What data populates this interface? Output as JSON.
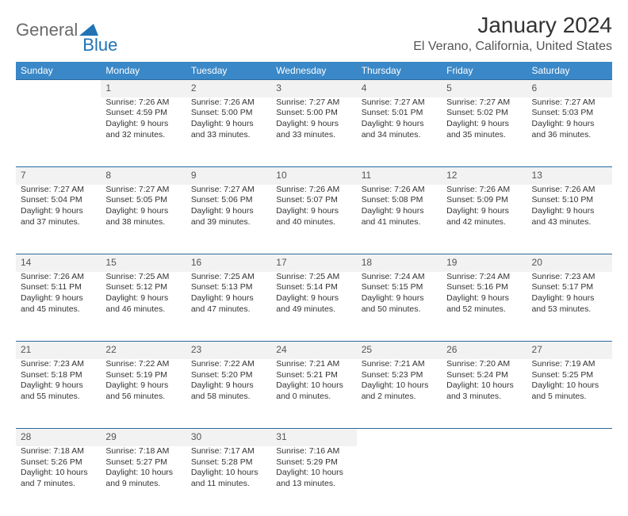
{
  "brand": {
    "part1": "General",
    "part2": "Blue",
    "color_gray": "#6a6a6a",
    "color_blue": "#2173b5"
  },
  "title": "January 2024",
  "location": "El Verano, California, United States",
  "header_bg": "#3a88c7",
  "header_text_color": "#ffffff",
  "daynum_bg": "#f2f2f2",
  "border_color": "#2a6aa0",
  "weekdays": [
    "Sunday",
    "Monday",
    "Tuesday",
    "Wednesday",
    "Thursday",
    "Friday",
    "Saturday"
  ],
  "weeks": [
    {
      "nums": [
        "",
        "1",
        "2",
        "3",
        "4",
        "5",
        "6"
      ],
      "cells": [
        null,
        {
          "sr": "Sunrise: 7:26 AM",
          "ss": "Sunset: 4:59 PM",
          "d1": "Daylight: 9 hours",
          "d2": "and 32 minutes."
        },
        {
          "sr": "Sunrise: 7:26 AM",
          "ss": "Sunset: 5:00 PM",
          "d1": "Daylight: 9 hours",
          "d2": "and 33 minutes."
        },
        {
          "sr": "Sunrise: 7:27 AM",
          "ss": "Sunset: 5:00 PM",
          "d1": "Daylight: 9 hours",
          "d2": "and 33 minutes."
        },
        {
          "sr": "Sunrise: 7:27 AM",
          "ss": "Sunset: 5:01 PM",
          "d1": "Daylight: 9 hours",
          "d2": "and 34 minutes."
        },
        {
          "sr": "Sunrise: 7:27 AM",
          "ss": "Sunset: 5:02 PM",
          "d1": "Daylight: 9 hours",
          "d2": "and 35 minutes."
        },
        {
          "sr": "Sunrise: 7:27 AM",
          "ss": "Sunset: 5:03 PM",
          "d1": "Daylight: 9 hours",
          "d2": "and 36 minutes."
        }
      ]
    },
    {
      "nums": [
        "7",
        "8",
        "9",
        "10",
        "11",
        "12",
        "13"
      ],
      "cells": [
        {
          "sr": "Sunrise: 7:27 AM",
          "ss": "Sunset: 5:04 PM",
          "d1": "Daylight: 9 hours",
          "d2": "and 37 minutes."
        },
        {
          "sr": "Sunrise: 7:27 AM",
          "ss": "Sunset: 5:05 PM",
          "d1": "Daylight: 9 hours",
          "d2": "and 38 minutes."
        },
        {
          "sr": "Sunrise: 7:27 AM",
          "ss": "Sunset: 5:06 PM",
          "d1": "Daylight: 9 hours",
          "d2": "and 39 minutes."
        },
        {
          "sr": "Sunrise: 7:26 AM",
          "ss": "Sunset: 5:07 PM",
          "d1": "Daylight: 9 hours",
          "d2": "and 40 minutes."
        },
        {
          "sr": "Sunrise: 7:26 AM",
          "ss": "Sunset: 5:08 PM",
          "d1": "Daylight: 9 hours",
          "d2": "and 41 minutes."
        },
        {
          "sr": "Sunrise: 7:26 AM",
          "ss": "Sunset: 5:09 PM",
          "d1": "Daylight: 9 hours",
          "d2": "and 42 minutes."
        },
        {
          "sr": "Sunrise: 7:26 AM",
          "ss": "Sunset: 5:10 PM",
          "d1": "Daylight: 9 hours",
          "d2": "and 43 minutes."
        }
      ]
    },
    {
      "nums": [
        "14",
        "15",
        "16",
        "17",
        "18",
        "19",
        "20"
      ],
      "cells": [
        {
          "sr": "Sunrise: 7:26 AM",
          "ss": "Sunset: 5:11 PM",
          "d1": "Daylight: 9 hours",
          "d2": "and 45 minutes."
        },
        {
          "sr": "Sunrise: 7:25 AM",
          "ss": "Sunset: 5:12 PM",
          "d1": "Daylight: 9 hours",
          "d2": "and 46 minutes."
        },
        {
          "sr": "Sunrise: 7:25 AM",
          "ss": "Sunset: 5:13 PM",
          "d1": "Daylight: 9 hours",
          "d2": "and 47 minutes."
        },
        {
          "sr": "Sunrise: 7:25 AM",
          "ss": "Sunset: 5:14 PM",
          "d1": "Daylight: 9 hours",
          "d2": "and 49 minutes."
        },
        {
          "sr": "Sunrise: 7:24 AM",
          "ss": "Sunset: 5:15 PM",
          "d1": "Daylight: 9 hours",
          "d2": "and 50 minutes."
        },
        {
          "sr": "Sunrise: 7:24 AM",
          "ss": "Sunset: 5:16 PM",
          "d1": "Daylight: 9 hours",
          "d2": "and 52 minutes."
        },
        {
          "sr": "Sunrise: 7:23 AM",
          "ss": "Sunset: 5:17 PM",
          "d1": "Daylight: 9 hours",
          "d2": "and 53 minutes."
        }
      ]
    },
    {
      "nums": [
        "21",
        "22",
        "23",
        "24",
        "25",
        "26",
        "27"
      ],
      "cells": [
        {
          "sr": "Sunrise: 7:23 AM",
          "ss": "Sunset: 5:18 PM",
          "d1": "Daylight: 9 hours",
          "d2": "and 55 minutes."
        },
        {
          "sr": "Sunrise: 7:22 AM",
          "ss": "Sunset: 5:19 PM",
          "d1": "Daylight: 9 hours",
          "d2": "and 56 minutes."
        },
        {
          "sr": "Sunrise: 7:22 AM",
          "ss": "Sunset: 5:20 PM",
          "d1": "Daylight: 9 hours",
          "d2": "and 58 minutes."
        },
        {
          "sr": "Sunrise: 7:21 AM",
          "ss": "Sunset: 5:21 PM",
          "d1": "Daylight: 10 hours",
          "d2": "and 0 minutes."
        },
        {
          "sr": "Sunrise: 7:21 AM",
          "ss": "Sunset: 5:23 PM",
          "d1": "Daylight: 10 hours",
          "d2": "and 2 minutes."
        },
        {
          "sr": "Sunrise: 7:20 AM",
          "ss": "Sunset: 5:24 PM",
          "d1": "Daylight: 10 hours",
          "d2": "and 3 minutes."
        },
        {
          "sr": "Sunrise: 7:19 AM",
          "ss": "Sunset: 5:25 PM",
          "d1": "Daylight: 10 hours",
          "d2": "and 5 minutes."
        }
      ]
    },
    {
      "nums": [
        "28",
        "29",
        "30",
        "31",
        "",
        "",
        ""
      ],
      "cells": [
        {
          "sr": "Sunrise: 7:18 AM",
          "ss": "Sunset: 5:26 PM",
          "d1": "Daylight: 10 hours",
          "d2": "and 7 minutes."
        },
        {
          "sr": "Sunrise: 7:18 AM",
          "ss": "Sunset: 5:27 PM",
          "d1": "Daylight: 10 hours",
          "d2": "and 9 minutes."
        },
        {
          "sr": "Sunrise: 7:17 AM",
          "ss": "Sunset: 5:28 PM",
          "d1": "Daylight: 10 hours",
          "d2": "and 11 minutes."
        },
        {
          "sr": "Sunrise: 7:16 AM",
          "ss": "Sunset: 5:29 PM",
          "d1": "Daylight: 10 hours",
          "d2": "and 13 minutes."
        },
        null,
        null,
        null
      ]
    }
  ]
}
